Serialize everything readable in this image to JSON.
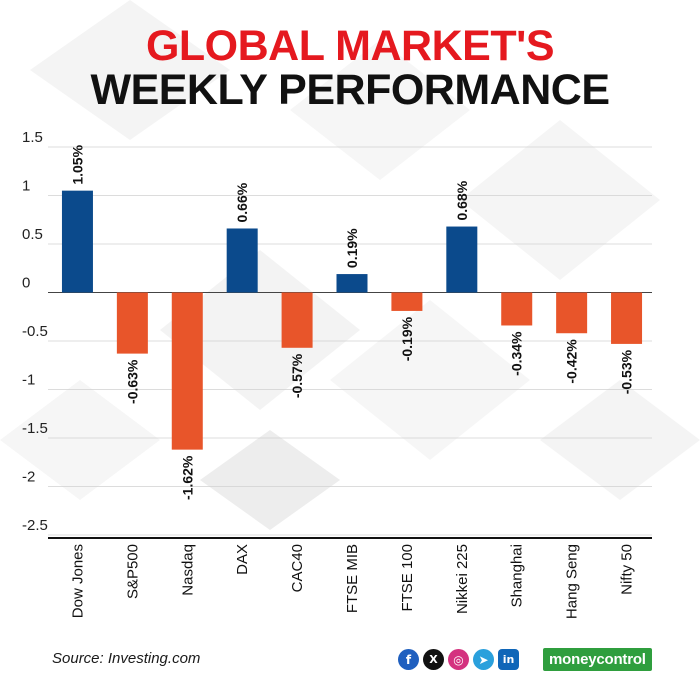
{
  "header": {
    "title_line1": "GLOBAL MARKET'S",
    "title_line2": "WEEKLY PERFORMANCE"
  },
  "footer": {
    "source": "Source: Investing.com",
    "brand": "moneycontrol",
    "social_icons": [
      "facebook-icon",
      "x-icon",
      "instagram-icon",
      "telegram-icon",
      "linkedin-icon"
    ]
  },
  "colors": {
    "positive": "#0b4a8c",
    "negative": "#e8552a",
    "title_red": "#e5191f",
    "brand_green": "#2f9e3e"
  },
  "chart_data": {
    "type": "bar",
    "categories": [
      "Dow Jones",
      "S&P500",
      "Nasdaq",
      "DAX",
      "CAC40",
      "FTSE MIB",
      "FTSE 100",
      "Nikkei 225",
      "Shanghai",
      "Hang Seng",
      "Nifty 50"
    ],
    "values": [
      1.05,
      -0.63,
      -1.62,
      0.66,
      -0.57,
      0.19,
      -0.19,
      0.68,
      -0.34,
      -0.42,
      -0.53
    ],
    "data_labels": [
      "1.05%",
      "-0.63%",
      "-1.62%",
      "0.66%",
      "-0.57%",
      "0.19%",
      "-0.19%",
      "0.68%",
      "-0.34%",
      "-0.42%",
      "-0.53%"
    ],
    "yticks": [
      1.5,
      1,
      0.5,
      0,
      -0.5,
      -1,
      -1.5,
      -2,
      -2.5
    ],
    "ytick_labels": [
      "1.5",
      "1",
      "0.5",
      "0",
      "-0.5",
      "-1",
      "-1.5",
      "-2",
      "-2.5"
    ],
    "ylim": [
      -2.6,
      1.55
    ],
    "grid": true,
    "title": "",
    "xlabel": "",
    "ylabel": ""
  }
}
